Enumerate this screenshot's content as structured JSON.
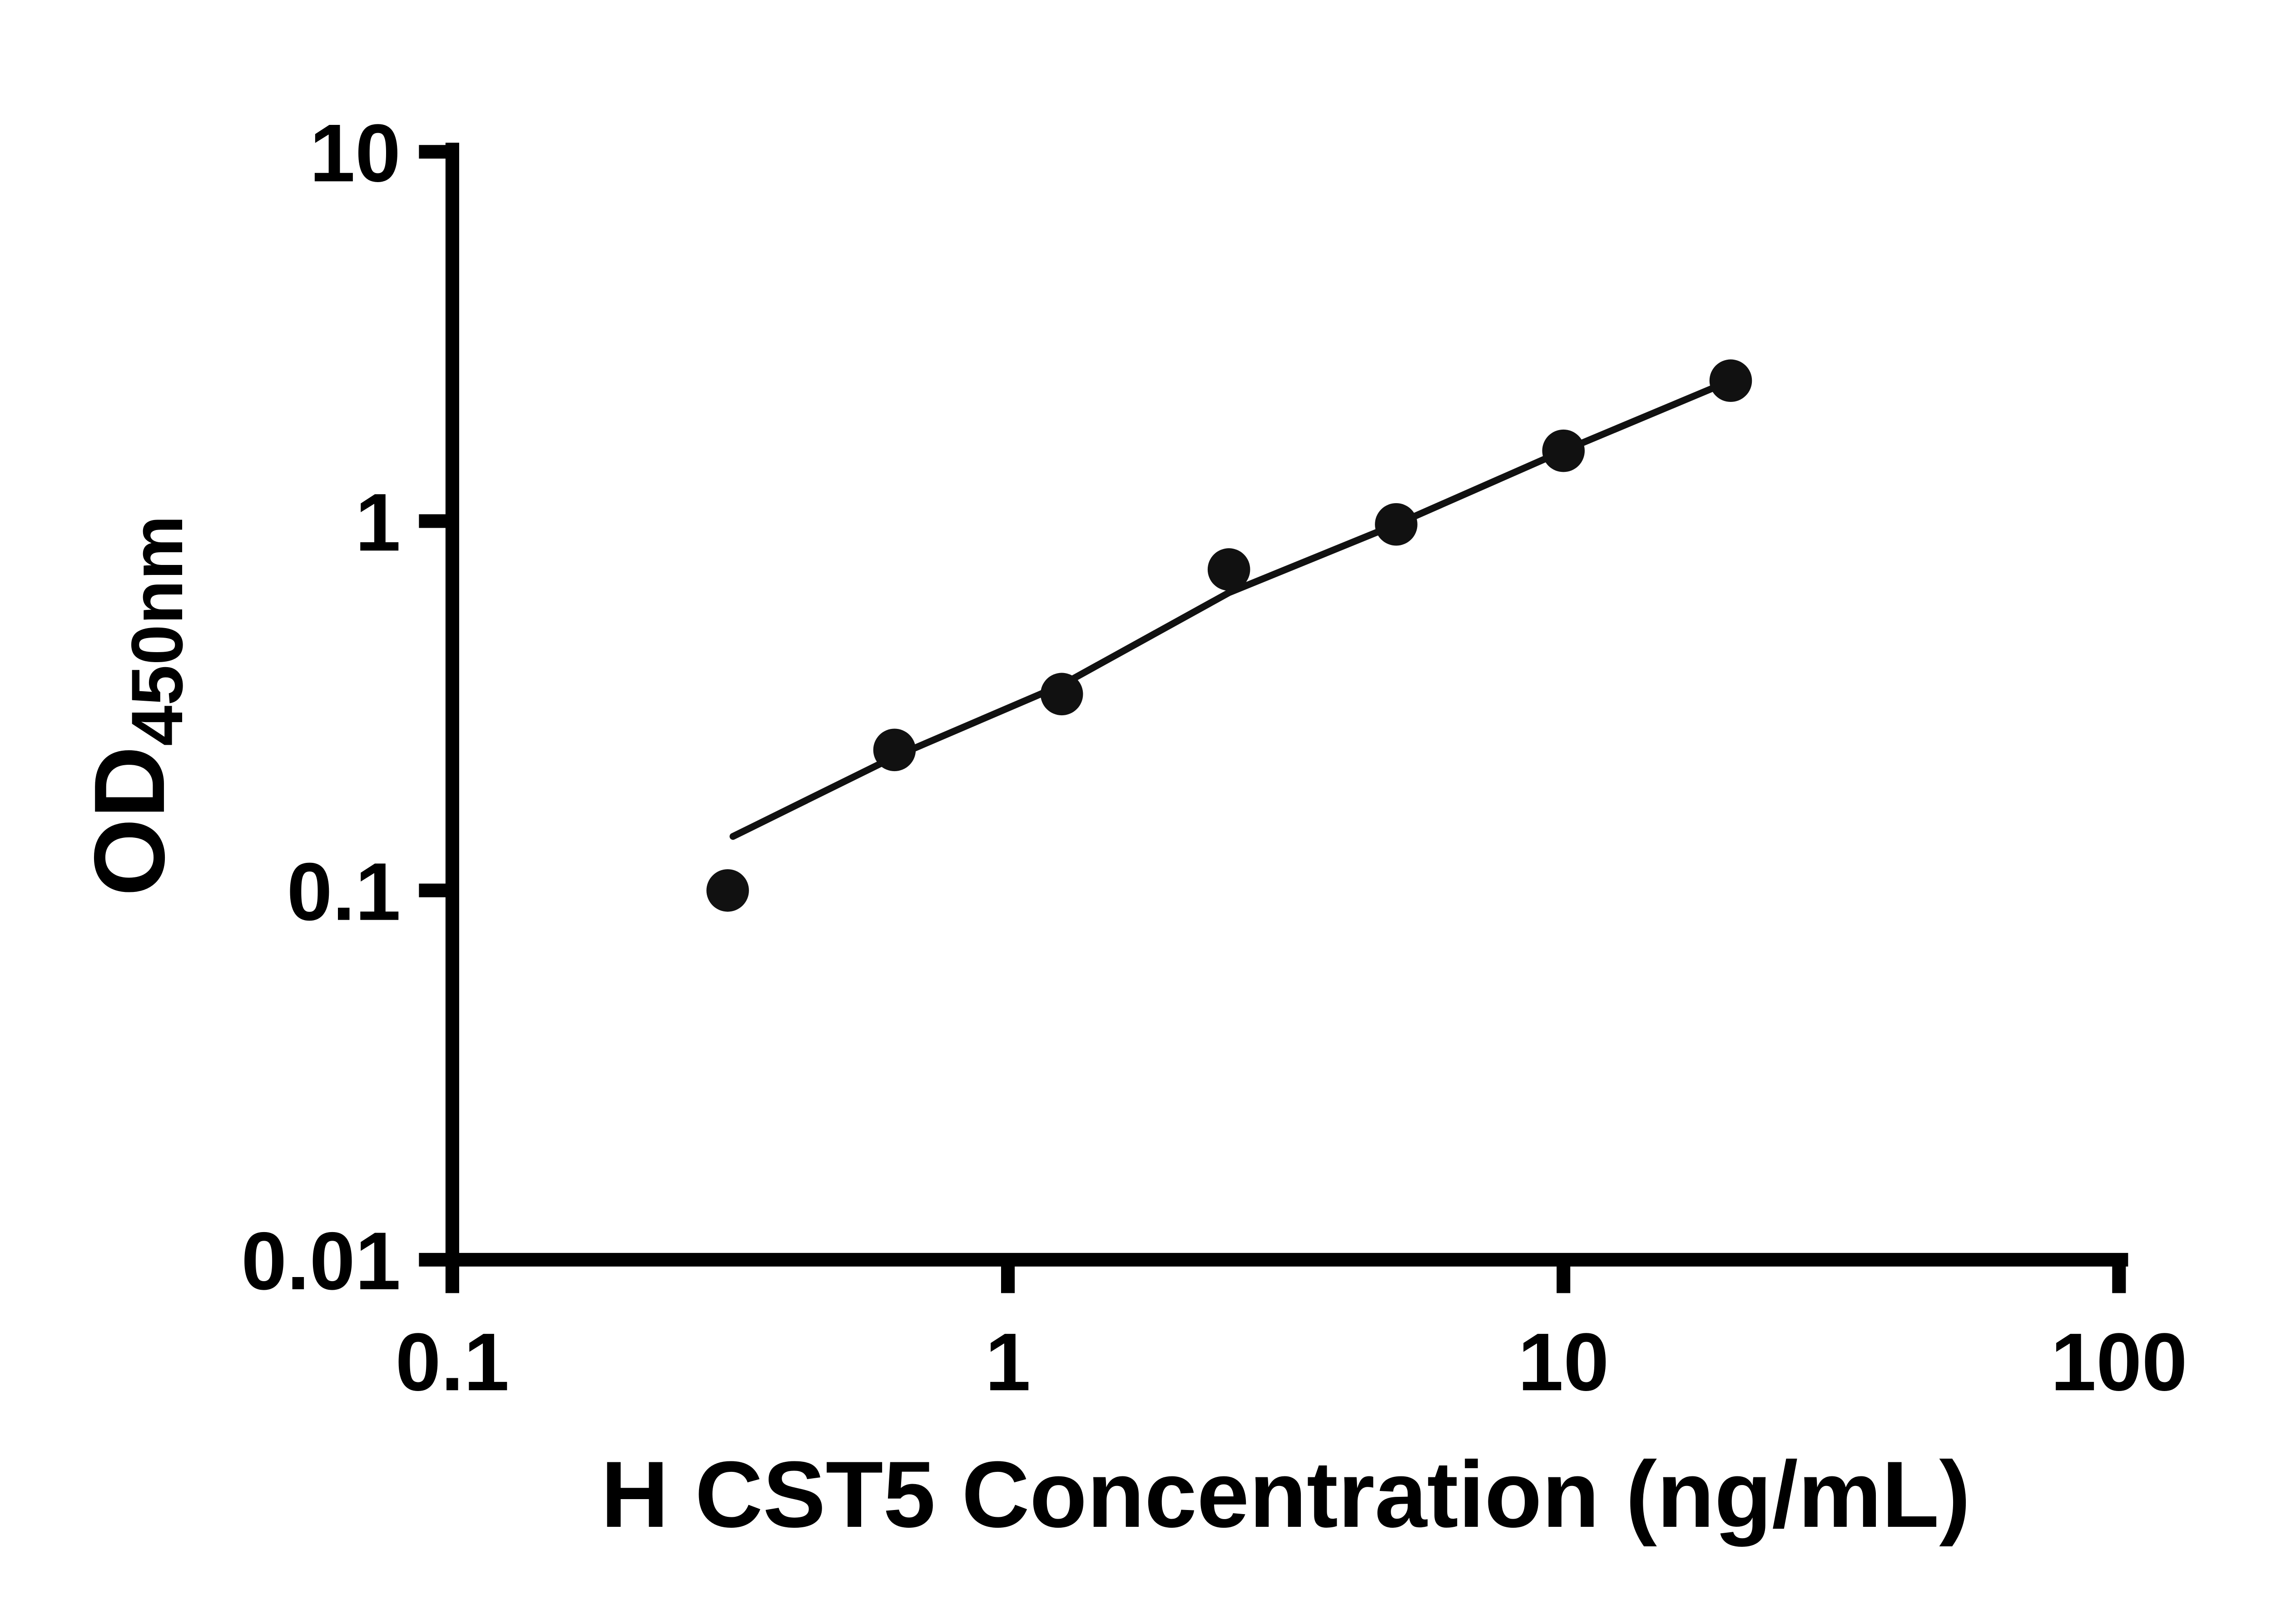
{
  "chart_data": {
    "type": "scatter",
    "title": "",
    "xlabel": "H CST5 Concentration (ng/mL)",
    "ylabel": "OD",
    "ylabel_subscript": "450nm",
    "x_scale": "log",
    "y_scale": "log",
    "xlim": [
      0.1,
      100
    ],
    "ylim": [
      0.01,
      10
    ],
    "x_ticks": [
      0.1,
      1,
      10,
      100
    ],
    "x_tick_labels": [
      "0.1",
      "1",
      "10",
      "100"
    ],
    "y_ticks": [
      0.01,
      0.1,
      1,
      10
    ],
    "y_tick_labels": [
      "0.01",
      "0.1",
      "1",
      "10"
    ],
    "grid": false,
    "legend": "none",
    "colors": {
      "axis": "#000000",
      "marker": "#111111",
      "line": "#111111",
      "background": "#ffffff"
    },
    "series": [
      {
        "name": "fit-line",
        "type": "line",
        "color": "#111111",
        "x": [
          0.32,
          0.625,
          1.25,
          2.5,
          5,
          10,
          20
        ],
        "y": [
          0.14,
          0.23,
          0.36,
          0.64,
          0.98,
          1.55,
          2.4
        ]
      },
      {
        "name": "standard-points",
        "type": "scatter",
        "color": "#111111",
        "x": [
          0.313,
          0.625,
          1.25,
          2.5,
          5,
          10,
          20
        ],
        "y": [
          0.1,
          0.24,
          0.34,
          0.74,
          0.98,
          1.55,
          2.4
        ]
      }
    ]
  }
}
